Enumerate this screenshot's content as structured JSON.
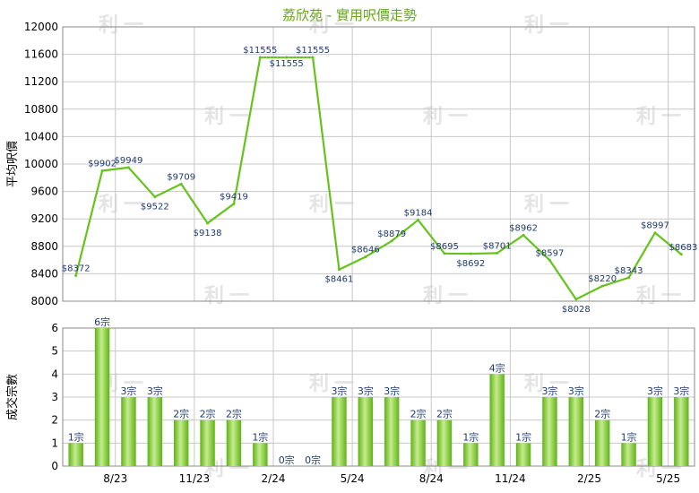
{
  "title": "荔欣苑 - 實用呎價走勢",
  "watermark": "利一",
  "colors": {
    "line": "#66c21c",
    "bar_dark": "#5fb217",
    "bar_light": "#c6ec8e",
    "grid": "#c8c8c8",
    "title": "#66a61c",
    "label": "#1f3a6e"
  },
  "chart_data": [
    {
      "type": "line",
      "ylabel": "平均呎價",
      "ylim": [
        8000,
        12000
      ],
      "yticks": [
        8000,
        8400,
        8800,
        9200,
        9600,
        10000,
        10400,
        10800,
        11200,
        11600,
        12000
      ],
      "x_tick_labels": [
        "8/23",
        "11/23",
        "2/24",
        "5/24",
        "8/24",
        "11/24",
        "2/25",
        "5/25"
      ],
      "x_tick_positions": [
        2,
        5,
        8,
        11,
        14,
        17,
        20,
        23
      ],
      "values": [
        8372,
        9902,
        9949,
        9522,
        9709,
        9138,
        9419,
        11555,
        11555,
        11555,
        8461,
        8646,
        8879,
        9184,
        8695,
        8692,
        8701,
        8962,
        8597,
        8028,
        8220,
        8343,
        8997,
        8683
      ],
      "data_labels": [
        "$8372",
        "$9902",
        "$9949",
        "$9522",
        "$9709",
        "$9138",
        "$9419",
        "$11555",
        "$11555",
        "$11555",
        "$8461",
        "$8646",
        "$8879",
        "$9184",
        "$8695",
        "$8692",
        "$8701",
        "$8962",
        "$8597",
        "$8028",
        "$8220",
        "$8343",
        "$8997",
        "$8683"
      ],
      "interpolated_segments": [
        [
          7,
          9
        ]
      ]
    },
    {
      "type": "bar",
      "ylabel": "成交宗數",
      "ylim": [
        0,
        6
      ],
      "yticks": [
        0,
        1,
        2,
        3,
        4,
        5,
        6
      ],
      "x_tick_labels": [
        "8/23",
        "11/23",
        "2/24",
        "5/24",
        "8/24",
        "11/24",
        "2/25",
        "5/25"
      ],
      "x_tick_positions": [
        2,
        5,
        8,
        11,
        14,
        17,
        20,
        23
      ],
      "values": [
        1,
        6,
        3,
        3,
        2,
        2,
        2,
        1,
        0,
        0,
        3,
        3,
        3,
        2,
        2,
        1,
        4,
        1,
        3,
        3,
        2,
        1,
        3,
        3
      ],
      "data_labels": [
        "1宗",
        "6宗",
        "3宗",
        "3宗",
        "2宗",
        "2宗",
        "2宗",
        "1宗",
        "0宗",
        "0宗",
        "3宗",
        "3宗",
        "3宗",
        "2宗",
        "2宗",
        "1宗",
        "4宗",
        "1宗",
        "3宗",
        "3宗",
        "2宗",
        "1宗",
        "3宗",
        "3宗"
      ]
    }
  ]
}
